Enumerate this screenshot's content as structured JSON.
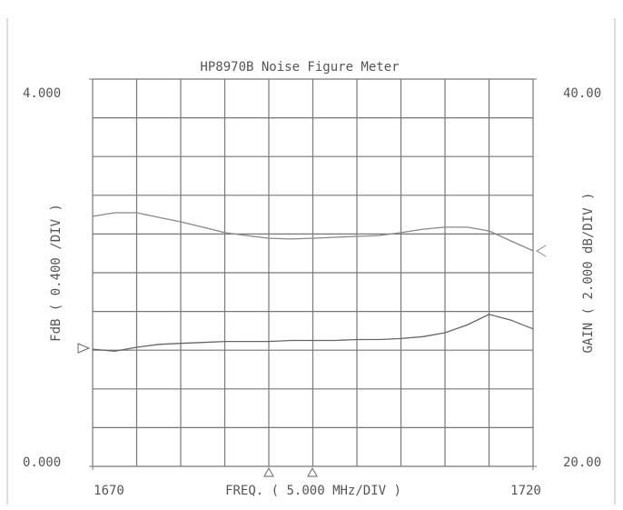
{
  "chart_data": {
    "type": "line",
    "title": "HP8970B Noise Figure Meter",
    "x_label": "FREQ.  ( 5.000 MHz/DIV )",
    "y_label": "FdB  ( 0.400 /DIV )",
    "y2_label": "GAIN ( 2.000 dB/DIV )",
    "x": [
      1670,
      1672.5,
      1675,
      1677.5,
      1680,
      1682.5,
      1685,
      1687.5,
      1690,
      1692.5,
      1695,
      1697.5,
      1700,
      1702.5,
      1705,
      1707.5,
      1710,
      1712.5,
      1715,
      1717.5,
      1720
    ],
    "xlim": [
      1670,
      1720
    ],
    "xticks": [
      1670,
      1720
    ],
    "ylim": [
      0,
      4
    ],
    "yticks": [
      {
        "value": 0,
        "label": "0.000"
      },
      {
        "value": 4,
        "label": "4.000"
      }
    ],
    "y2lim": [
      20,
      40
    ],
    "y2ticks": [
      {
        "value": 20,
        "label": "20.00"
      },
      {
        "value": 40,
        "label": "40.00"
      }
    ],
    "grid": true,
    "series": [
      {
        "name": "FdB",
        "color": "#666666",
        "values": [
          1.21,
          1.19,
          1.23,
          1.26,
          1.27,
          1.28,
          1.29,
          1.29,
          1.29,
          1.3,
          1.3,
          1.3,
          1.31,
          1.31,
          1.32,
          1.34,
          1.38,
          1.46,
          1.57,
          1.51,
          1.42
        ]
      },
      {
        "name": "GAIN",
        "color": "#888888",
        "axis": "y2",
        "values": [
          32.91,
          33.1,
          33.1,
          32.86,
          32.63,
          32.35,
          32.07,
          31.92,
          31.78,
          31.74,
          31.78,
          31.83,
          31.88,
          31.92,
          32.07,
          32.25,
          32.35,
          32.35,
          32.16,
          31.64,
          31.13
        ]
      }
    ]
  }
}
